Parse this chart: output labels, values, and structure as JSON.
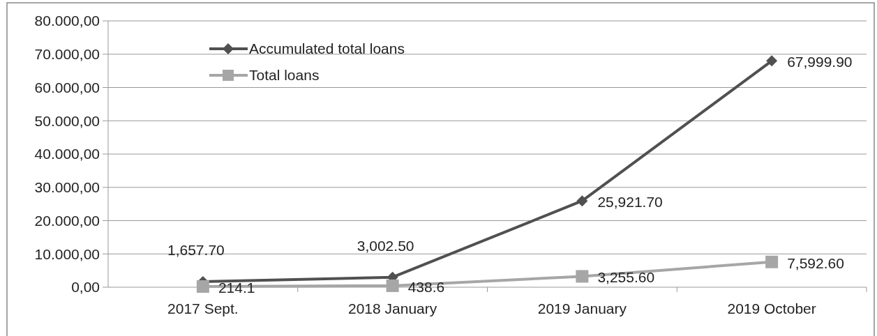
{
  "chart_data": {
    "type": "line",
    "categories": [
      "2017 Sept.",
      "2018 January",
      "2019 January",
      "2019 October"
    ],
    "series": [
      {
        "name": "Accumulated total loans",
        "color": "#505050",
        "marker": "diamond",
        "values": [
          1657.7,
          3002.5,
          25921.7,
          67999.9
        ],
        "value_labels": [
          "1,657.70",
          "3,002.50",
          "25,921.70",
          "67,999.90"
        ]
      },
      {
        "name": "Total loans",
        "color": "#a6a6a6",
        "marker": "square",
        "values": [
          214.1,
          438.6,
          3255.6,
          7592.6
        ],
        "value_labels": [
          "214.1",
          "438.6",
          "3,255.60",
          "7,592.60"
        ]
      }
    ],
    "ylim": [
      0,
      80000
    ],
    "yticks": [
      {
        "value": 0,
        "label": "0,00"
      },
      {
        "value": 10000,
        "label": "10.000,00"
      },
      {
        "value": 20000,
        "label": "20.000,00"
      },
      {
        "value": 30000,
        "label": "30.000,00"
      },
      {
        "value": 40000,
        "label": "40.000,00"
      },
      {
        "value": 50000,
        "label": "50.000,00"
      },
      {
        "value": 60000,
        "label": "60.000,00"
      },
      {
        "value": 70000,
        "label": "70.000,00"
      },
      {
        "value": 80000,
        "label": "80.000,00"
      }
    ],
    "grid": "y",
    "legend": "top left"
  }
}
